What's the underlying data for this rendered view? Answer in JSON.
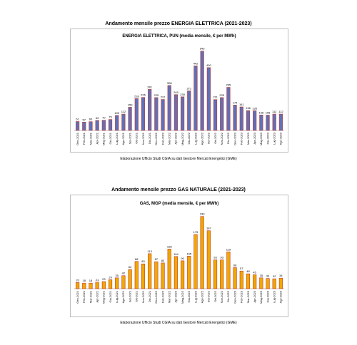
{
  "chart_data": [
    {
      "type": "bar",
      "title": "Andamento mensile prezzo ENERGIA ELETTRICA (2021-2023)",
      "subtitle": "ENERGIA ELETTRICA,  PUN (media mensile, € per MWh)",
      "source": "Elaborazione Ufficio Studi CGIA su dati Gestore Mercati Energetici (GME)",
      "categories": [
        "Gen-2021",
        "Feb-2021",
        "Mar-2021",
        "Apr-2021",
        "Mag-2021",
        "Giu-2021",
        "Lug-2021",
        "Ago-2021",
        "Set-2021",
        "Ott-2021",
        "Nov-2021",
        "Dic-2021",
        "Gen-2022",
        "Feb-2022",
        "Mar-2022",
        "Apr-2022",
        "Mag-2022",
        "Giu-2022",
        "Lug-2022",
        "Ago-2022",
        "Set-2022",
        "Ott-2022",
        "Nov-2022",
        "Dic-2022",
        "Gen-2023",
        "Feb-2023",
        "Mar-2023",
        "Apr-2023",
        "Mag-2023",
        "Giu-2023",
        "Lug-2023",
        "Ago-2023"
      ],
      "values": [
        61,
        57,
        60,
        69,
        70,
        75,
        103,
        112,
        159,
        218,
        226,
        281,
        225,
        212,
        308,
        245,
        230,
        271,
        442,
        543,
        430,
        211,
        225,
        295,
        174,
        161,
        136,
        135,
        106,
        105,
        112,
        112
      ],
      "ylim": [
        0,
        600
      ],
      "grid": false,
      "legend": "none",
      "bar_color": "#6070b8",
      "bar_edge_color": "#c0392b"
    },
    {
      "type": "bar",
      "title": "Andamento mensile prezzo GAS NATURALE (2021-2023)",
      "subtitle": "GAS, MGP (media mensile, € per MWh)",
      "source": "Elaborazione Ufficio Studi CGIA su dati Gestore Mercati Energetici (GME)",
      "categories": [
        "Gen-2021",
        "Feb-2021",
        "Mar-2021",
        "Apr-2021",
        "Mag-2021",
        "Giu-2021",
        "Lug-2021",
        "Ago-2021",
        "Set-2021",
        "Ott-2021",
        "Nov-2021",
        "Dic-2021",
        "Gen-2022",
        "Feb-2022",
        "Mar-2022",
        "Apr-2022",
        "Mag-2022",
        "Giu-2022",
        "Lug-2022",
        "Ago-2022",
        "Set-2022",
        "Ott-2022",
        "Nov-2022",
        "Dic-2022",
        "Gen-2023",
        "Feb-2023",
        "Mar-2023",
        "Apr-2023",
        "Mag-2023",
        "Giu-2023",
        "Lug-2023",
        "Ago-2023"
      ],
      "values": [
        20,
        18,
        18,
        21,
        23,
        29,
        35,
        42,
        62,
        88,
        80,
        113,
        87,
        83,
        128,
        104,
        90,
        105,
        175,
        233,
        187,
        93,
        93,
        119,
        68,
        57,
        48,
        45,
        35,
        33,
        32,
        34
      ],
      "ylim": [
        0,
        260
      ],
      "grid": false,
      "legend": "none",
      "bar_color": "#f0a800",
      "bar_edge_color": "#c0392b"
    }
  ]
}
